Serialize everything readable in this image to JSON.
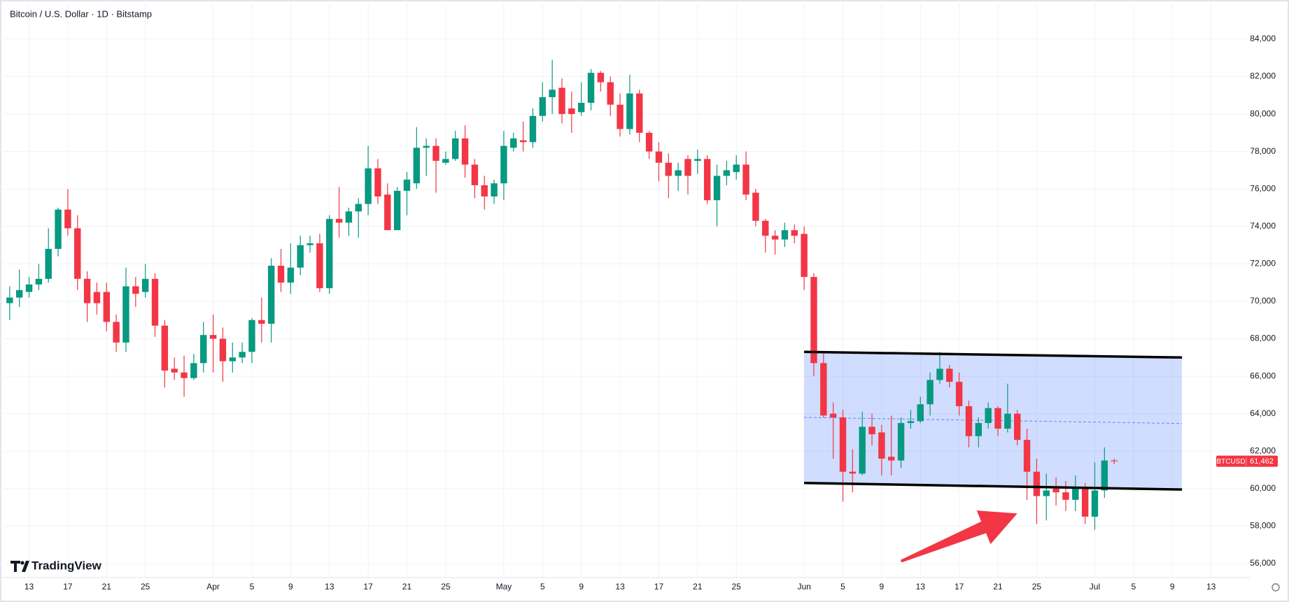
{
  "chart_data": {
    "type": "candlestick",
    "title": "Bitcoin / U.S. Dollar · 1D · Bitstamp",
    "brand": "TradingView",
    "up_color": "#089981",
    "down_color": "#f23645",
    "grid": true,
    "x": [
      "Mar 11",
      "Mar 12",
      "Mar 13",
      "Mar 14",
      "Mar 15",
      "Mar 16",
      "Mar 17",
      "Mar 18",
      "Mar 19",
      "Mar 20",
      "Mar 21",
      "Mar 22",
      "Mar 23",
      "Mar 24",
      "Mar 25",
      "Mar 26",
      "Mar 27",
      "Mar 28",
      "Mar 29",
      "Mar 30",
      "Mar 31",
      "Apr 1",
      "Apr 2",
      "Apr 3",
      "Apr 4",
      "Apr 5",
      "Apr 6",
      "Apr 7",
      "Apr 8",
      "Apr 9",
      "Apr 10",
      "Apr 11",
      "Apr 12",
      "Apr 13",
      "Apr 14",
      "Apr 15",
      "Apr 16",
      "Apr 17",
      "Apr 18",
      "Apr 19",
      "Apr 20",
      "Apr 21",
      "Apr 22",
      "Apr 23",
      "Apr 24",
      "Apr 25",
      "Apr 26",
      "Apr 27",
      "Apr 28",
      "Apr 29",
      "Apr 30",
      "May 1",
      "May 2",
      "May 3",
      "May 4",
      "May 5",
      "May 6",
      "May 7",
      "May 8",
      "May 9",
      "May 10",
      "May 11",
      "May 12",
      "May 13",
      "May 14",
      "May 15",
      "May 16",
      "May 17",
      "May 18",
      "May 19",
      "May 20",
      "May 21",
      "May 22",
      "May 23",
      "May 24",
      "May 25",
      "May 26",
      "May 27",
      "May 28",
      "May 29",
      "May 30",
      "May 31",
      "Jun 1",
      "Jun 2",
      "Jun 3",
      "Jun 4",
      "Jun 5",
      "Jun 6",
      "Jun 7",
      "Jun 8",
      "Jun 9",
      "Jun 10",
      "Jun 11",
      "Jun 12",
      "Jun 13",
      "Jun 14",
      "Jun 15",
      "Jun 16",
      "Jun 17",
      "Jun 18",
      "Jun 19",
      "Jun 20",
      "Jun 21",
      "Jun 22",
      "Jun 23",
      "Jun 24",
      "Jun 25",
      "Jun 26",
      "Jun 27",
      "Jun 28",
      "Jun 29",
      "Jun 30",
      "Jul 1",
      "Jul 2",
      "Jul 3"
    ],
    "open": [
      69900,
      70200,
      70500,
      70900,
      71200,
      72800,
      74900,
      73900,
      71200,
      70500,
      70500,
      68900,
      67800,
      70800,
      70500,
      71200,
      68700,
      66400,
      66200,
      65900,
      66700,
      68200,
      68000,
      66800,
      67000,
      67300,
      69000,
      68800,
      71900,
      71000,
      71800,
      73000,
      73100,
      70700,
      74400,
      74200,
      74800,
      75200,
      77100,
      75700,
      73800,
      75900,
      76300,
      78200,
      78300,
      77400,
      77600,
      78700,
      77300,
      76200,
      75600,
      76300,
      78200,
      78600,
      78500,
      79900,
      80900,
      81400,
      80300,
      80100,
      80600,
      82200,
      81700,
      80500,
      79200,
      81100,
      79000,
      78000,
      77400,
      76700,
      77600,
      77500,
      77600,
      75400,
      76700,
      76900,
      77300,
      75800,
      74300,
      73500,
      73300,
      73800,
      73600,
      71300,
      66700,
      64000,
      63800,
      60900,
      60800,
      63300,
      63000,
      61700,
      61500,
      63500,
      63600,
      64500,
      65800,
      66400,
      65700,
      64400,
      62800,
      63500,
      64300,
      63200,
      64000,
      62600,
      60900,
      59600,
      60000,
      59800,
      59400,
      60100,
      58500,
      59900,
      61500
    ],
    "high": [
      70800,
      71700,
      71300,
      72000,
      73900,
      75000,
      76000,
      74600,
      71600,
      71000,
      71000,
      69300,
      71800,
      71300,
      72000,
      71500,
      69000,
      67000,
      67100,
      67200,
      68900,
      69300,
      68600,
      67800,
      67800,
      69100,
      70200,
      72300,
      72800,
      73100,
      73500,
      73500,
      73600,
      74600,
      76100,
      75000,
      75500,
      78300,
      77600,
      76300,
      76100,
      76900,
      79300,
      78700,
      78700,
      78000,
      79100,
      79400,
      77600,
      76700,
      76500,
      79100,
      79000,
      79600,
      80300,
      81700,
      82900,
      81900,
      81200,
      81700,
      82400,
      82300,
      82000,
      81100,
      82100,
      81300,
      79100,
      78500,
      77900,
      77400,
      77800,
      78100,
      77800,
      77300,
      77500,
      77800,
      78000,
      76000,
      74400,
      73800,
      74200,
      74100,
      74000,
      71500,
      67200,
      64600,
      64200,
      62100,
      64100,
      64000,
      63400,
      63900,
      63800,
      64200,
      64900,
      66200,
      67300,
      66600,
      66200,
      64700,
      63800,
      64600,
      64400,
      65600,
      64200,
      63200,
      61600,
      60800,
      60600,
      60400,
      60700,
      60300,
      61400,
      62200,
      61600
    ],
    "low": [
      69000,
      69700,
      70200,
      70600,
      71000,
      72400,
      73500,
      70600,
      68900,
      69300,
      68400,
      67300,
      67300,
      69700,
      70200,
      68100,
      65400,
      65800,
      64900,
      65800,
      66200,
      66200,
      65700,
      66200,
      66700,
      66700,
      67800,
      67800,
      70500,
      70400,
      71400,
      72600,
      70500,
      70400,
      73400,
      73500,
      73400,
      74600,
      75200,
      73800,
      73800,
      74600,
      76000,
      76700,
      75800,
      77300,
      77500,
      76600,
      75500,
      74900,
      75200,
      75400,
      78000,
      78000,
      78200,
      79600,
      80000,
      79500,
      79000,
      79900,
      80200,
      81200,
      79900,
      78800,
      78900,
      78500,
      77600,
      76400,
      75500,
      75900,
      75700,
      76800,
      75200,
      74000,
      76200,
      76500,
      75400,
      74000,
      72600,
      72500,
      72900,
      73100,
      70600,
      66000,
      63800,
      61600,
      59300,
      59800,
      60700,
      62300,
      60700,
      60700,
      61100,
      63200,
      63500,
      63900,
      65600,
      65400,
      63900,
      62200,
      62200,
      63200,
      62800,
      63000,
      62300,
      59400,
      58100,
      58300,
      59100,
      58800,
      58800,
      58100,
      57800,
      59500,
      61300
    ],
    "close": [
      70200,
      70600,
      70900,
      71200,
      72800,
      74900,
      73900,
      71200,
      69900,
      69900,
      68900,
      67800,
      70800,
      70400,
      71200,
      68700,
      66300,
      66200,
      65900,
      66700,
      68200,
      68000,
      66800,
      67000,
      67300,
      69000,
      68800,
      71900,
      71000,
      71800,
      73000,
      73100,
      70700,
      74400,
      74200,
      74800,
      75200,
      77100,
      75600,
      73800,
      75900,
      76500,
      78200,
      78300,
      77500,
      77600,
      78700,
      77300,
      76200,
      75600,
      76300,
      78300,
      78700,
      78500,
      79900,
      80900,
      81300,
      80000,
      80000,
      80600,
      82200,
      81700,
      80500,
      79200,
      81100,
      79000,
      78000,
      77400,
      76700,
      77000,
      76700,
      77600,
      75400,
      76700,
      77000,
      77300,
      75700,
      74300,
      73500,
      73300,
      73800,
      73500,
      71300,
      66700,
      63900,
      63800,
      60900,
      60800,
      63300,
      62900,
      61600,
      61500,
      63500,
      63600,
      64500,
      65800,
      66400,
      65700,
      64400,
      62800,
      63500,
      64300,
      63200,
      64000,
      62600,
      60900,
      59600,
      59900,
      59800,
      59400,
      60000,
      58500,
      59900,
      61500,
      61462
    ],
    "xlim": [
      "Mar 10",
      "Jul 17"
    ],
    "ylim": [
      55250,
      86090
    ],
    "xticks": [
      {
        "value": "Mar 13",
        "label": "13"
      },
      {
        "value": "Mar 17",
        "label": "17"
      },
      {
        "value": "Mar 21",
        "label": "21"
      },
      {
        "value": "Mar 25",
        "label": "25"
      },
      {
        "value": "Apr 1",
        "label": "Apr"
      },
      {
        "value": "Apr 5",
        "label": "5"
      },
      {
        "value": "Apr 9",
        "label": "9"
      },
      {
        "value": "Apr 13",
        "label": "13"
      },
      {
        "value": "Apr 17",
        "label": "17"
      },
      {
        "value": "Apr 21",
        "label": "21"
      },
      {
        "value": "Apr 25",
        "label": "25"
      },
      {
        "value": "May 1",
        "label": "May"
      },
      {
        "value": "May 5",
        "label": "5"
      },
      {
        "value": "May 9",
        "label": "9"
      },
      {
        "value": "May 13",
        "label": "13"
      },
      {
        "value": "May 17",
        "label": "17"
      },
      {
        "value": "May 21",
        "label": "21"
      },
      {
        "value": "May 25",
        "label": "25"
      },
      {
        "value": "Jun 1",
        "label": "Jun"
      },
      {
        "value": "Jun 5",
        "label": "5"
      },
      {
        "value": "Jun 9",
        "label": "9"
      },
      {
        "value": "Jun 13",
        "label": "13"
      },
      {
        "value": "Jun 17",
        "label": "17"
      },
      {
        "value": "Jun 21",
        "label": "21"
      },
      {
        "value": "Jun 25",
        "label": "25"
      },
      {
        "value": "Jul 1",
        "label": "Jul"
      },
      {
        "value": "Jul 5",
        "label": "5"
      },
      {
        "value": "Jul 9",
        "label": "9"
      },
      {
        "value": "Jul 13",
        "label": "13"
      }
    ],
    "yticks": [
      {
        "value": 56000,
        "label": "56,000"
      },
      {
        "value": 58000,
        "label": "58,000"
      },
      {
        "value": 60000,
        "label": "60,000"
      },
      {
        "value": 62000,
        "label": "62,000"
      },
      {
        "value": 64000,
        "label": "64,000"
      },
      {
        "value": 66000,
        "label": "66,000"
      },
      {
        "value": 68000,
        "label": "68,000"
      },
      {
        "value": 70000,
        "label": "70,000"
      },
      {
        "value": 72000,
        "label": "72,000"
      },
      {
        "value": 74000,
        "label": "74,000"
      },
      {
        "value": 76000,
        "label": "76,000"
      },
      {
        "value": 78000,
        "label": "78,000"
      },
      {
        "value": 80000,
        "label": "80,000"
      },
      {
        "value": 82000,
        "label": "82,000"
      },
      {
        "value": 84000,
        "label": "84,000"
      }
    ],
    "last_price": {
      "symbol": "BTCUSD",
      "value": 61462,
      "label": "61,462"
    },
    "drawings": {
      "channel": {
        "upper": [
          [
            "Jun 1",
            67300
          ],
          [
            "Jul 10",
            67000
          ]
        ],
        "lower": [
          [
            "Jun 1",
            60300
          ],
          [
            "Jul 10",
            59950
          ]
        ]
      },
      "arrow": [
        [
          "Jun 11",
          56120
        ],
        [
          "Jun 23",
          58670
        ]
      ]
    }
  }
}
